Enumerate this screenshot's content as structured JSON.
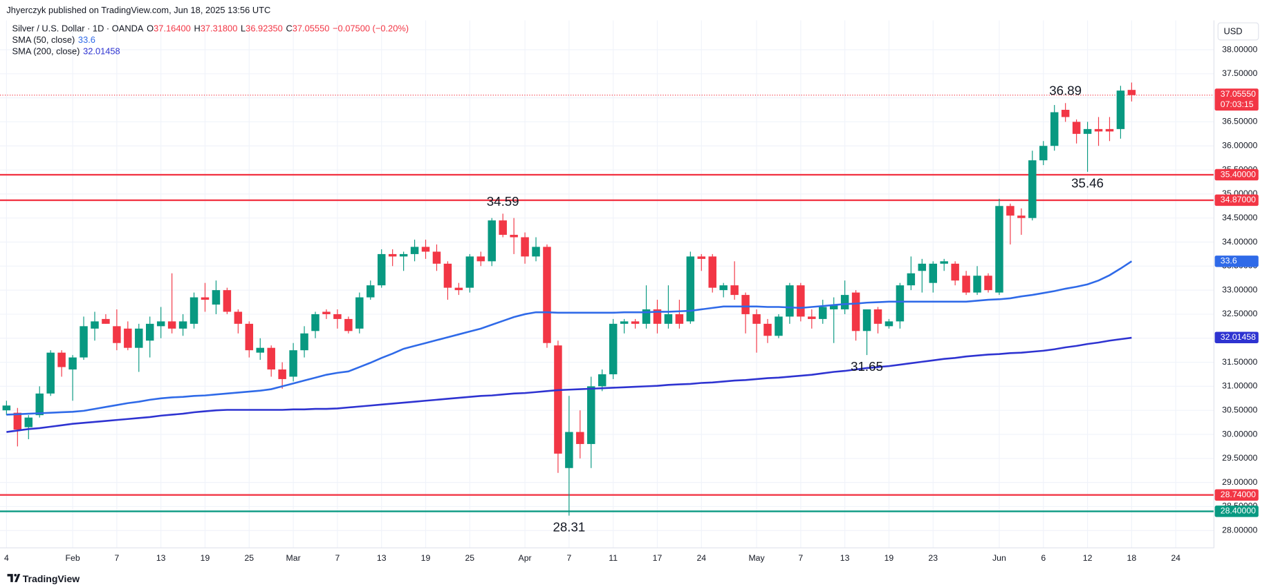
{
  "header": {
    "publisher": "Jhyerczyk published on TradingView.com, Jun 18, 2025 13:56 UTC",
    "symbol": "Silver / U.S. Dollar · 1D · OANDA",
    "ohlc": [
      {
        "key": "O",
        "label": "37.16400"
      },
      {
        "key": "H",
        "label": "37.31800"
      },
      {
        "key": "L",
        "label": "36.92350"
      },
      {
        "key": "C",
        "label": "37.05550"
      }
    ],
    "change": "−0.07500 (−0.20%)",
    "currency": "USD",
    "brand": "TradingView"
  },
  "chart_data": {
    "type": "candlestick",
    "up_color": "#089981",
    "down_color": "#f23645",
    "grid": true,
    "categories": [
      "4",
      null,
      null,
      null,
      null,
      null,
      "Feb",
      null,
      null,
      null,
      "7",
      null,
      null,
      null,
      "13",
      null,
      null,
      null,
      "19",
      null,
      null,
      null,
      "25",
      null,
      null,
      null,
      "Mar",
      null,
      null,
      null,
      "7",
      null,
      null,
      null,
      "13",
      null,
      null,
      null,
      "19",
      null,
      null,
      null,
      "25",
      null,
      null,
      null,
      null,
      "Apr",
      null,
      null,
      null,
      "7",
      null,
      null,
      null,
      "11",
      null,
      null,
      null,
      "17",
      null,
      null,
      null,
      "24",
      null,
      null,
      null,
      null,
      "May",
      null,
      null,
      null,
      "7",
      null,
      null,
      null,
      "13",
      null,
      null,
      null,
      "19",
      null,
      null,
      null,
      "23",
      null,
      null,
      null,
      null,
      null,
      "Jun",
      null,
      null,
      null,
      "6",
      null,
      null,
      null,
      "12",
      null,
      null,
      null,
      "18",
      null,
      null,
      null,
      "24",
      null,
      null,
      null
    ],
    "open": [
      30.5,
      30.45,
      30.15,
      30.4,
      30.85,
      31.7,
      31.35,
      31.6,
      32.2,
      32.4,
      32.25,
      32.2,
      31.8,
      31.95,
      32.25,
      32.35,
      32.2,
      32.3,
      32.85,
      32.7,
      33.0,
      32.55,
      32.3,
      31.7,
      31.8,
      31.35,
      31.2,
      31.75,
      32.15,
      32.55,
      32.5,
      32.4,
      32.2,
      32.85,
      33.1,
      33.75,
      33.7,
      33.75,
      33.9,
      33.8,
      33.55,
      33.05,
      33.05,
      33.7,
      33.6,
      34.45,
      34.15,
      34.1,
      33.7,
      33.9,
      31.85,
      29.3,
      30.05,
      29.8,
      31.0,
      31.25,
      32.3,
      32.35,
      32.3,
      32.6,
      32.3,
      32.5,
      32.35,
      33.7,
      33.7,
      33.0,
      33.1,
      32.9,
      32.5,
      32.3,
      32.05,
      32.45,
      33.1,
      32.45,
      32.4,
      32.6,
      32.6,
      32.95,
      32.15,
      32.6,
      32.25,
      32.35,
      33.1,
      33.4,
      33.15,
      33.55,
      33.55,
      33.3,
      32.95,
      33.3,
      32.95,
      34.75,
      34.55,
      34.5,
      35.7,
      36.0,
      36.75,
      36.5,
      36.25,
      36.35,
      36.35,
      36.35,
      37.164,
      null,
      null,
      null,
      null,
      null,
      null,
      null
    ],
    "high": [
      30.7,
      30.55,
      30.4,
      31.0,
      31.75,
      31.75,
      31.65,
      32.45,
      32.55,
      32.5,
      32.6,
      32.35,
      32.3,
      32.45,
      32.65,
      33.35,
      32.5,
      32.95,
      33.15,
      33.2,
      33.05,
      32.6,
      32.35,
      32.0,
      31.85,
      31.5,
      31.9,
      32.25,
      32.55,
      32.6,
      32.6,
      32.45,
      32.95,
      33.2,
      33.85,
      33.85,
      33.8,
      34.05,
      34.05,
      33.95,
      33.6,
      33.15,
      33.75,
      33.8,
      34.5,
      34.59,
      34.5,
      34.2,
      34.1,
      33.95,
      31.95,
      30.8,
      30.5,
      31.2,
      31.35,
      32.4,
      32.4,
      32.4,
      33.1,
      32.8,
      33.1,
      32.8,
      33.8,
      33.75,
      33.75,
      33.15,
      33.6,
      32.95,
      32.6,
      32.4,
      32.5,
      33.15,
      33.15,
      32.6,
      32.8,
      32.85,
      33.2,
      33.0,
      32.6,
      32.65,
      32.4,
      33.15,
      33.7,
      33.65,
      33.6,
      33.65,
      33.6,
      33.4,
      33.5,
      33.35,
      34.9,
      34.8,
      34.7,
      35.9,
      36.1,
      36.85,
      36.89,
      36.55,
      36.5,
      36.6,
      36.6,
      37.25,
      37.318,
      null,
      null,
      null,
      null,
      null,
      null,
      null
    ],
    "low": [
      30.4,
      29.75,
      29.9,
      30.35,
      30.8,
      31.2,
      30.7,
      31.55,
      31.95,
      32.3,
      31.75,
      31.75,
      31.3,
      31.6,
      32.0,
      32.1,
      32.05,
      32.2,
      32.55,
      32.5,
      32.5,
      32.1,
      31.6,
      31.55,
      31.2,
      30.95,
      31.1,
      31.6,
      32.0,
      32.4,
      32.2,
      32.1,
      32.1,
      32.8,
      33.05,
      33.5,
      33.4,
      33.6,
      33.65,
      33.4,
      32.8,
      32.9,
      32.95,
      33.5,
      33.5,
      34.1,
      33.75,
      33.55,
      33.6,
      31.8,
      29.2,
      28.31,
      29.5,
      29.3,
      30.9,
      31.15,
      32.1,
      32.2,
      32.2,
      32.1,
      32.2,
      32.2,
      32.3,
      33.4,
      32.95,
      32.85,
      32.8,
      32.1,
      31.7,
      31.9,
      32.0,
      32.3,
      32.35,
      32.2,
      32.3,
      31.9,
      32.5,
      31.95,
      31.65,
      32.1,
      32.2,
      32.2,
      33.0,
      32.95,
      32.95,
      33.4,
      33.1,
      32.9,
      32.9,
      32.95,
      32.9,
      33.95,
      34.15,
      34.45,
      35.6,
      35.9,
      36.5,
      36.05,
      35.46,
      36.0,
      36.1,
      36.15,
      36.9235,
      null,
      null,
      null,
      null,
      null,
      null,
      null
    ],
    "close": [
      30.6,
      30.1,
      30.35,
      30.85,
      31.7,
      31.4,
      31.6,
      32.25,
      32.35,
      32.3,
      31.9,
      31.8,
      32.2,
      32.3,
      32.35,
      32.2,
      32.35,
      32.85,
      32.8,
      33.0,
      32.55,
      32.3,
      31.75,
      31.8,
      31.35,
      31.15,
      31.75,
      32.1,
      32.5,
      32.5,
      32.4,
      32.15,
      32.85,
      33.1,
      33.75,
      33.7,
      33.75,
      33.9,
      33.8,
      33.55,
      33.05,
      33.0,
      33.7,
      33.6,
      34.45,
      34.15,
      34.1,
      33.7,
      33.9,
      31.9,
      29.6,
      30.05,
      29.8,
      31.0,
      31.25,
      32.3,
      32.35,
      32.3,
      32.6,
      32.3,
      32.5,
      32.3,
      33.7,
      33.65,
      33.05,
      33.1,
      32.9,
      32.5,
      32.3,
      32.05,
      32.45,
      33.1,
      32.45,
      32.4,
      32.65,
      32.7,
      32.9,
      32.15,
      32.6,
      32.3,
      32.35,
      33.1,
      33.35,
      33.55,
      33.55,
      33.6,
      33.2,
      32.95,
      33.3,
      33.0,
      34.75,
      34.55,
      34.5,
      35.7,
      36.0,
      36.7,
      36.6,
      36.25,
      36.35,
      36.3,
      36.3,
      37.15,
      37.0555,
      null,
      null,
      null,
      null,
      null,
      null,
      null
    ],
    "series": [
      {
        "name": "SMA (50, close)",
        "color": "#2f6ae8",
        "last_value": 33.6,
        "values": [
          30.41,
          30.42,
          30.43,
          30.44,
          30.45,
          30.46,
          30.47,
          30.49,
          30.53,
          30.57,
          30.61,
          30.65,
          30.68,
          30.72,
          30.75,
          30.77,
          30.78,
          30.8,
          30.81,
          30.83,
          30.85,
          30.87,
          30.89,
          30.91,
          30.94,
          31.0,
          31.06,
          31.12,
          31.18,
          31.24,
          31.28,
          31.31,
          31.4,
          31.49,
          31.59,
          31.68,
          31.78,
          31.84,
          31.9,
          31.96,
          32.02,
          32.08,
          32.14,
          32.2,
          32.28,
          32.36,
          32.44,
          32.5,
          32.54,
          32.54,
          32.53,
          32.53,
          32.53,
          32.53,
          32.53,
          32.53,
          32.54,
          32.54,
          32.54,
          32.55,
          32.55,
          32.56,
          32.57,
          32.6,
          32.63,
          32.66,
          32.66,
          32.66,
          32.66,
          32.65,
          32.65,
          32.64,
          32.63,
          32.65,
          32.67,
          32.69,
          32.71,
          32.72,
          32.74,
          32.75,
          32.76,
          32.76,
          32.76,
          32.76,
          32.76,
          32.76,
          32.76,
          32.76,
          32.78,
          32.8,
          32.81,
          32.83,
          32.87,
          32.9,
          32.94,
          32.98,
          33.03,
          33.07,
          33.12,
          33.2,
          33.31,
          33.45,
          33.6,
          null,
          null,
          null,
          null,
          null,
          null,
          null
        ]
      },
      {
        "name": "SMA (200, close)",
        "color": "#2e33d1",
        "last_value": 32.01458,
        "values": [
          30.05,
          30.08,
          30.11,
          30.13,
          30.16,
          30.19,
          30.22,
          30.24,
          30.26,
          30.28,
          30.3,
          30.32,
          30.34,
          30.36,
          30.39,
          30.41,
          30.43,
          30.46,
          30.48,
          30.5,
          30.51,
          30.51,
          30.51,
          30.51,
          30.51,
          30.51,
          30.52,
          30.52,
          30.53,
          30.53,
          30.54,
          30.56,
          30.58,
          30.6,
          30.62,
          30.64,
          30.66,
          30.68,
          30.7,
          30.72,
          30.74,
          30.76,
          30.78,
          30.8,
          30.81,
          30.83,
          30.85,
          30.86,
          30.88,
          30.9,
          30.92,
          30.93,
          30.94,
          30.95,
          30.96,
          30.97,
          30.98,
          30.99,
          31.0,
          31.01,
          31.03,
          31.04,
          31.05,
          31.07,
          31.08,
          31.1,
          31.12,
          31.13,
          31.15,
          31.17,
          31.18,
          31.2,
          31.22,
          31.24,
          31.27,
          31.3,
          31.32,
          31.35,
          31.38,
          31.4,
          31.42,
          31.45,
          31.48,
          31.51,
          31.54,
          31.57,
          31.59,
          31.62,
          31.64,
          31.66,
          31.67,
          31.69,
          31.7,
          31.72,
          31.74,
          31.77,
          31.81,
          31.84,
          31.88,
          31.91,
          31.95,
          31.98,
          32.01,
          null,
          null,
          null,
          null,
          null,
          null,
          null
        ]
      }
    ],
    "ylim": [
      27.64,
      38.61
    ],
    "yticks": [
      {
        "value": 28,
        "label": "28.00000"
      },
      {
        "value": 28.5,
        "label": "28.50000"
      },
      {
        "value": 29,
        "label": "29.00000"
      },
      {
        "value": 29.5,
        "label": "29.50000"
      },
      {
        "value": 30,
        "label": "30.00000"
      },
      {
        "value": 30.5,
        "label": "30.50000"
      },
      {
        "value": 31,
        "label": "31.00000"
      },
      {
        "value": 31.5,
        "label": "31.50000"
      },
      {
        "value": 32,
        "label": "32.00000"
      },
      {
        "value": 32.5,
        "label": "32.50000"
      },
      {
        "value": 33,
        "label": "33.00000"
      },
      {
        "value": 33.5,
        "label": "33.50000"
      },
      {
        "value": 34,
        "label": "34.00000"
      },
      {
        "value": 34.5,
        "label": "34.50000"
      },
      {
        "value": 35,
        "label": "35.00000"
      },
      {
        "value": 35.5,
        "label": "35.50000"
      },
      {
        "value": 36,
        "label": "36.00000"
      },
      {
        "value": 36.5,
        "label": "36.50000"
      },
      {
        "value": 37,
        "label": "37.00000"
      },
      {
        "value": 37.5,
        "label": "37.50000"
      },
      {
        "value": 38,
        "label": "38.00000"
      }
    ],
    "levels": [
      {
        "value": 35.4,
        "label": "35.40000",
        "color": "#f23645"
      },
      {
        "value": 34.87,
        "label": "34.87000",
        "color": "#f23645"
      },
      {
        "value": 28.74,
        "label": "28.74000",
        "color": "#f23645"
      },
      {
        "value": 28.4,
        "label": "28.40000",
        "color": "#089981"
      }
    ],
    "last_price": {
      "value": 37.0555,
      "label": "37.05550",
      "countdown": "07:03:15",
      "color": "#f23645"
    },
    "annotations": [
      {
        "value": 36.89,
        "side": "above"
      },
      {
        "value": 35.46,
        "side": "below"
      },
      {
        "value": 34.59,
        "side": "above"
      },
      {
        "value": 31.65,
        "side": "below"
      },
      {
        "value": 28.31,
        "side": "below"
      }
    ]
  }
}
